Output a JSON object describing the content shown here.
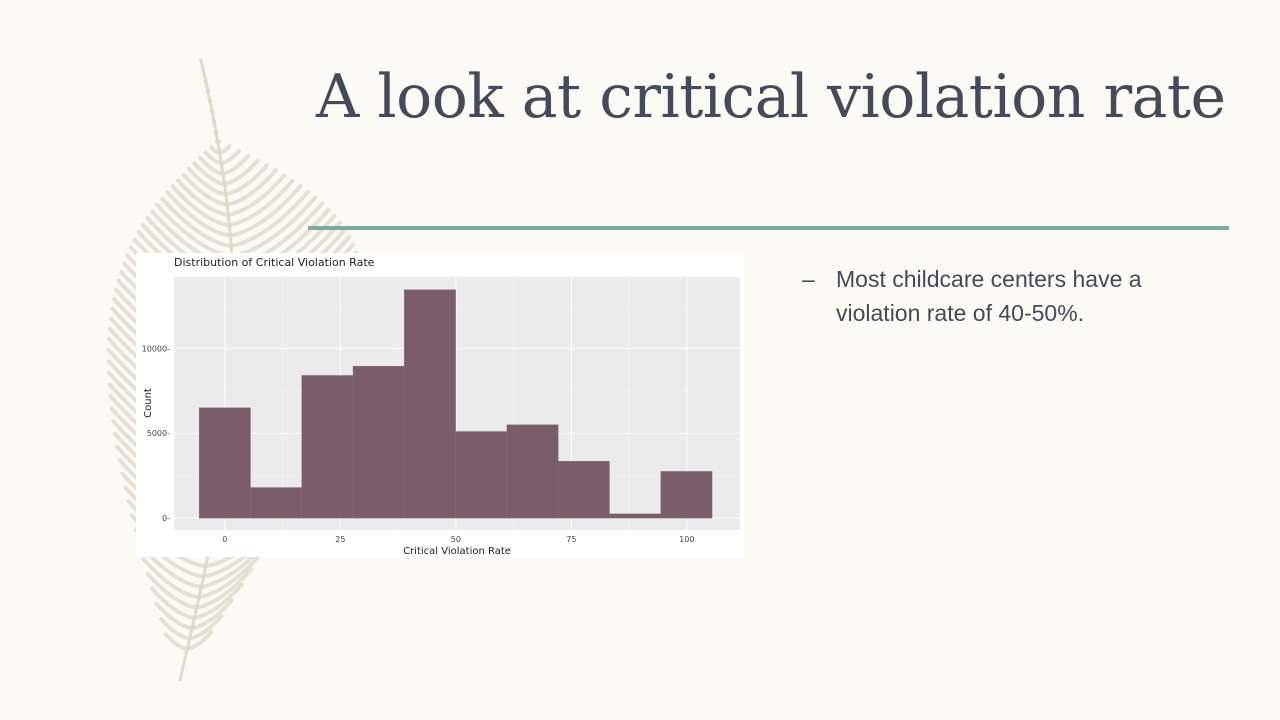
{
  "slide": {
    "title": "A look at critical violation rate"
  },
  "bullets": [
    {
      "marker": "–",
      "text": "Most childcare centers have a violation rate of 40-50%."
    }
  ],
  "colors": {
    "background": "#fbfaf5",
    "title": "#454a5a",
    "divider": "#7ea9a1",
    "bar": "#7a5c6a",
    "plot_bg": "#ebebeb",
    "feather": "#dcd8c8"
  },
  "chart_data": {
    "type": "bar",
    "title": "Distribution of Critical Violation Rate",
    "xlabel": "Critical Violation Rate",
    "ylabel": "Count",
    "xlim": [
      -11,
      111.5
    ],
    "ylim": [
      -700,
      14200
    ],
    "x_ticks": [
      0,
      25,
      50,
      75,
      100
    ],
    "y_ticks": [
      0,
      5000,
      10000
    ],
    "grid": true,
    "bin_width": 11.1,
    "bins": [
      {
        "center": 0.0,
        "count": 6500
      },
      {
        "center": 11.1,
        "count": 1800
      },
      {
        "center": 22.2,
        "count": 8400
      },
      {
        "center": 33.3,
        "count": 8950
      },
      {
        "center": 44.4,
        "count": 13450
      },
      {
        "center": 55.5,
        "count": 5100
      },
      {
        "center": 66.6,
        "count": 5500
      },
      {
        "center": 77.7,
        "count": 3350
      },
      {
        "center": 88.8,
        "count": 250
      },
      {
        "center": 99.9,
        "count": 2750
      }
    ]
  }
}
